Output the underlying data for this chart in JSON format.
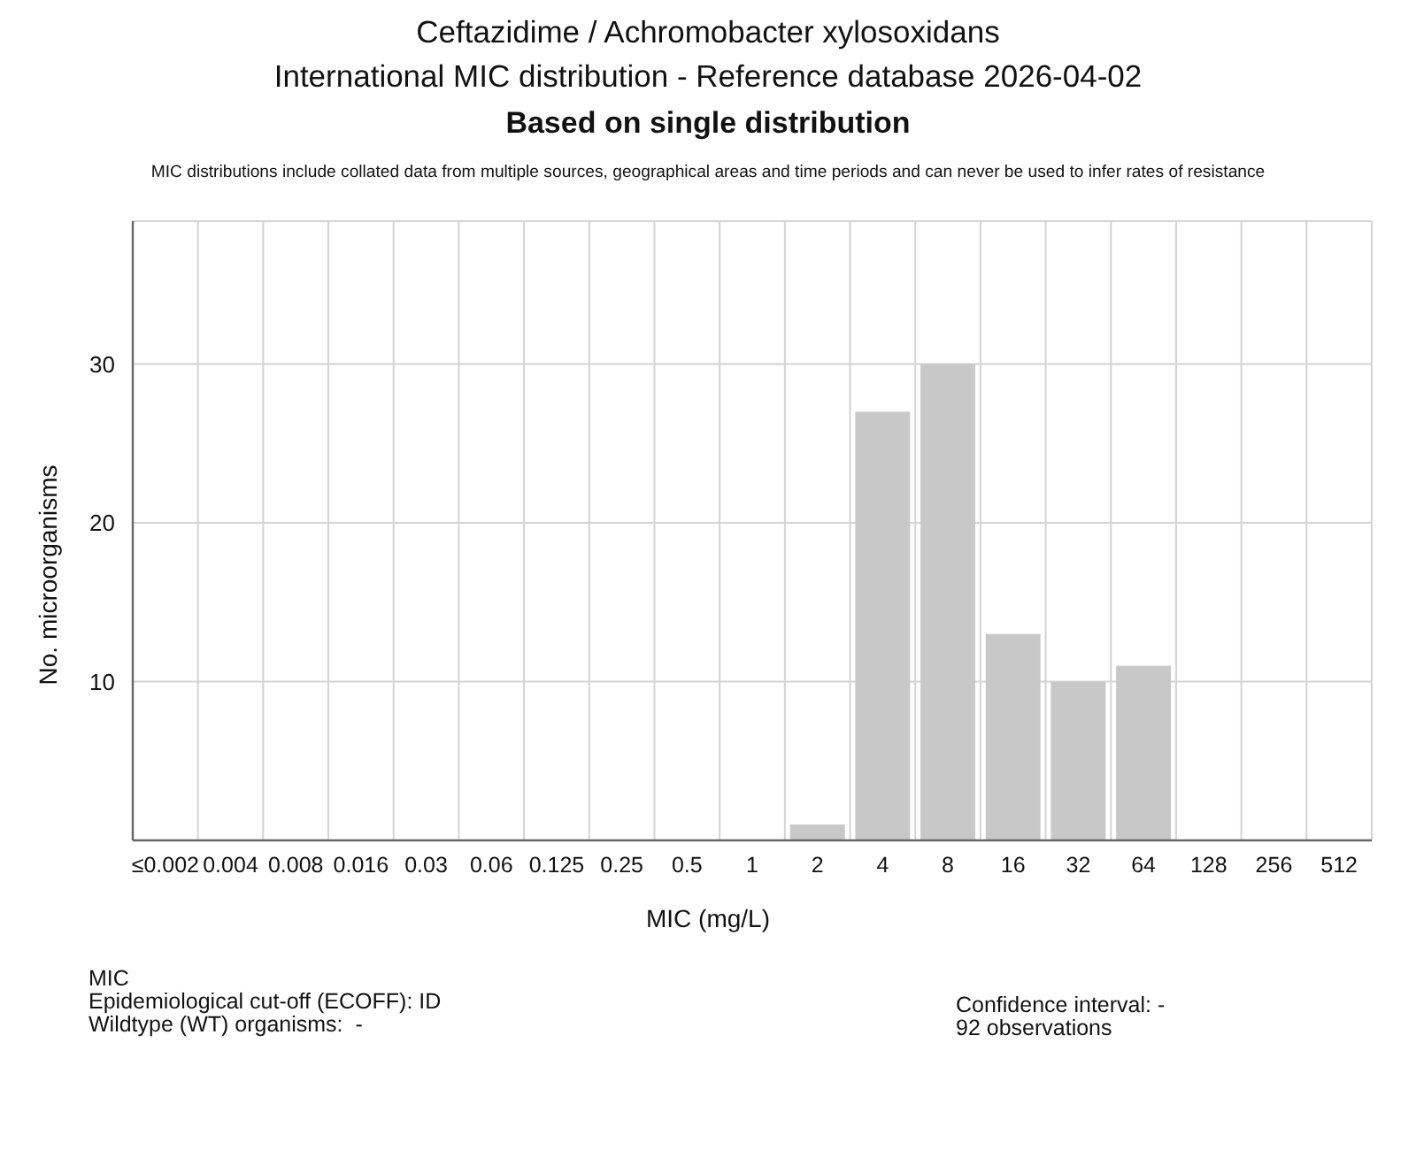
{
  "chart_data": {
    "type": "bar",
    "title": "Ceftazidime / Achromobacter xylosoxidans",
    "subtitle": "International MIC distribution - Reference database 2026-04-02",
    "annotations": [
      "Based on single distribution",
      "MIC distributions include collated data from multiple sources, geographical areas and time periods and can never be used to infer rates of resistance",
      "MIC",
      "Epidemiological cut-off (ECOFF): ID",
      "Wildtype (WT) organisms:  -",
      "Confidence interval: -",
      "92 observations"
    ],
    "xlabel": "MIC (mg/L)",
    "ylabel": "No. microorganisms",
    "categories": [
      "≤0.002",
      "0.004",
      "0.008",
      "0.016",
      "0.03",
      "0.06",
      "0.125",
      "0.25",
      "0.5",
      "1",
      "2",
      "4",
      "8",
      "16",
      "32",
      "64",
      "128",
      "256",
      "512"
    ],
    "values": [
      0,
      0,
      0,
      0,
      0,
      0,
      0,
      0,
      0,
      0,
      1,
      27,
      30,
      13,
      10,
      11,
      0,
      0,
      0
    ],
    "color": "#c8c8c8",
    "ylim": [
      0,
      39
    ],
    "yticks": [
      10,
      20,
      30
    ],
    "grid": true
  }
}
